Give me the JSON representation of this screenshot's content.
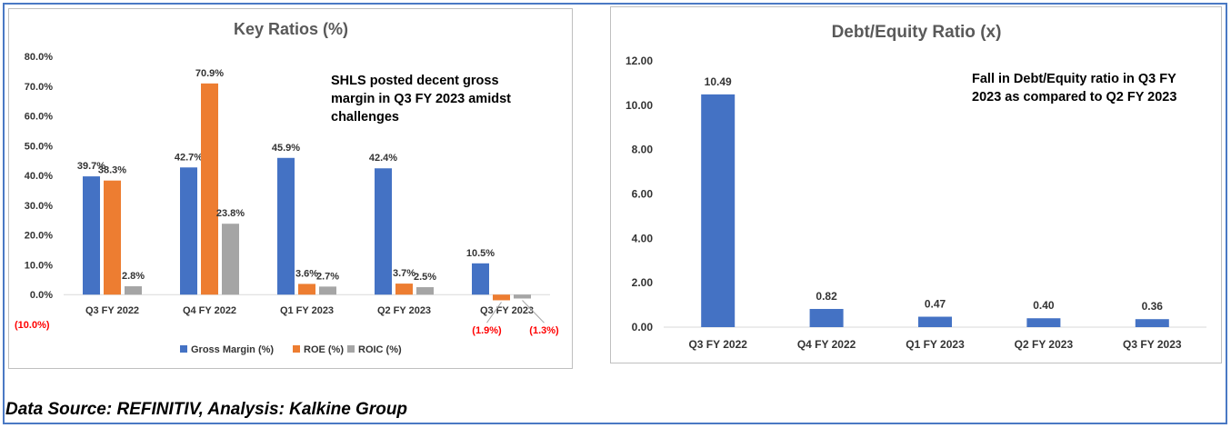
{
  "chart_data": [
    {
      "type": "bar",
      "title": "Key Ratios (%)",
      "categories": [
        "Q3 FY 2022",
        "Q4 FY 2022",
        "Q1 FY 2023",
        "Q2 FY 2023",
        "Q3 FY 2023"
      ],
      "series": [
        {
          "name": "Gross Margin (%)",
          "color": "#4472c4",
          "values": [
            39.7,
            42.7,
            45.9,
            42.4,
            10.5
          ],
          "labels": [
            "39.7%",
            "42.7%",
            "45.9%",
            "42.4%",
            "10.5%"
          ]
        },
        {
          "name": "ROE (%)",
          "color": "#ed7d31",
          "values": [
            38.3,
            70.9,
            3.6,
            3.7,
            -1.9
          ],
          "labels": [
            "38.3%",
            "70.9%",
            "3.6%",
            "3.7%",
            "(1.9%)"
          ]
        },
        {
          "name": "ROIC (%)",
          "color": "#a5a5a5",
          "values": [
            2.8,
            23.8,
            2.7,
            2.5,
            -1.3
          ],
          "labels": [
            "2.8%",
            "23.8%",
            "2.7%",
            "2.5%",
            "(1.3%)"
          ]
        }
      ],
      "ylim": [
        -10,
        80
      ],
      "yticks": [
        -10,
        0,
        10,
        20,
        30,
        40,
        50,
        60,
        70,
        80
      ],
      "ytick_labels": [
        "(10.0%)",
        "0.0%",
        "10.0%",
        "20.0%",
        "30.0%",
        "40.0%",
        "50.0%",
        "60.0%",
        "70.0%",
        "80.0%"
      ],
      "negative_label_color": "#ff0000",
      "legend": "bottom",
      "annotation": "SHLS posted decent gross margin in Q3 FY 2023 amidst challenges"
    },
    {
      "type": "bar",
      "title": "Debt/Equity Ratio (x)",
      "categories": [
        "Q3 FY 2022",
        "Q4 FY 2022",
        "Q1 FY 2023",
        "Q2 FY 2023",
        "Q3 FY 2023"
      ],
      "series": [
        {
          "name": "Debt/Equity Ratio (x)",
          "color": "#4472c4",
          "values": [
            10.49,
            0.82,
            0.47,
            0.4,
            0.36
          ],
          "labels": [
            "10.49",
            "0.82",
            "0.47",
            "0.40",
            "0.36"
          ]
        }
      ],
      "ylim": [
        0,
        12
      ],
      "yticks": [
        0,
        2,
        4,
        6,
        8,
        10,
        12
      ],
      "ytick_labels": [
        "0.00",
        "2.00",
        "4.00",
        "6.00",
        "8.00",
        "10.00",
        "12.00"
      ],
      "annotation": "Fall in Debt/Equity ratio in Q3 FY 2023 as compared to Q2 FY 2023"
    }
  ],
  "footer": {
    "source": "Data Source: REFINITIV, Analysis: Kalkine Group"
  }
}
